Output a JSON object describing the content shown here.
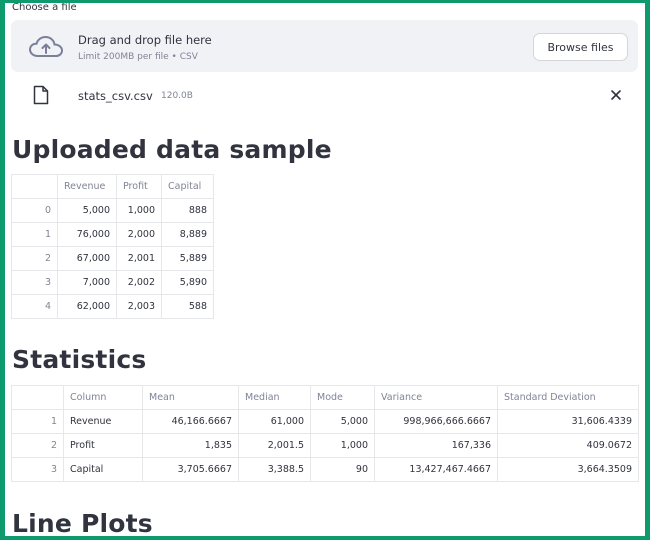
{
  "uploader": {
    "label": "Choose a file",
    "drop_title": "Drag and drop file here",
    "limit_text": "Limit 200MB per file • CSV",
    "browse_label": "Browse files",
    "icon": "cloud-upload-icon"
  },
  "file": {
    "name": "stats_csv.csv",
    "size": "120.0B",
    "icon": "file-icon",
    "remove_icon": "close-icon"
  },
  "headings": {
    "upload": "Uploaded data sample",
    "stats": "Statistics",
    "line": "Line Plots"
  },
  "sample_table": {
    "columns": [
      "",
      "Revenue",
      "Profit",
      "Capital"
    ],
    "rows": [
      [
        "0",
        "5,000",
        "1,000",
        "888"
      ],
      [
        "1",
        "76,000",
        "2,000",
        "8,889"
      ],
      [
        "2",
        "67,000",
        "2,001",
        "5,889"
      ],
      [
        "3",
        "7,000",
        "2,002",
        "5,890"
      ],
      [
        "4",
        "62,000",
        "2,003",
        "588"
      ]
    ]
  },
  "stats_table": {
    "columns": [
      "",
      "Column",
      "Mean",
      "Median",
      "Mode",
      "Variance",
      "Standard Deviation"
    ],
    "rows": [
      [
        "1",
        "Revenue",
        "46,166.6667",
        "61,000",
        "5,000",
        "998,966,666.6667",
        "31,606.4339"
      ],
      [
        "2",
        "Profit",
        "1,835",
        "2,001.5",
        "1,000",
        "167,336",
        "409.0672"
      ],
      [
        "3",
        "Capital",
        "3,705.6667",
        "3,388.5",
        "90",
        "13,427,467.4667",
        "3,664.3509"
      ]
    ]
  },
  "colors": {
    "frame_border": "#0f9a6e",
    "dropzone_bg": "#f0f2f6",
    "text": "#31333f",
    "muted": "#808495"
  }
}
